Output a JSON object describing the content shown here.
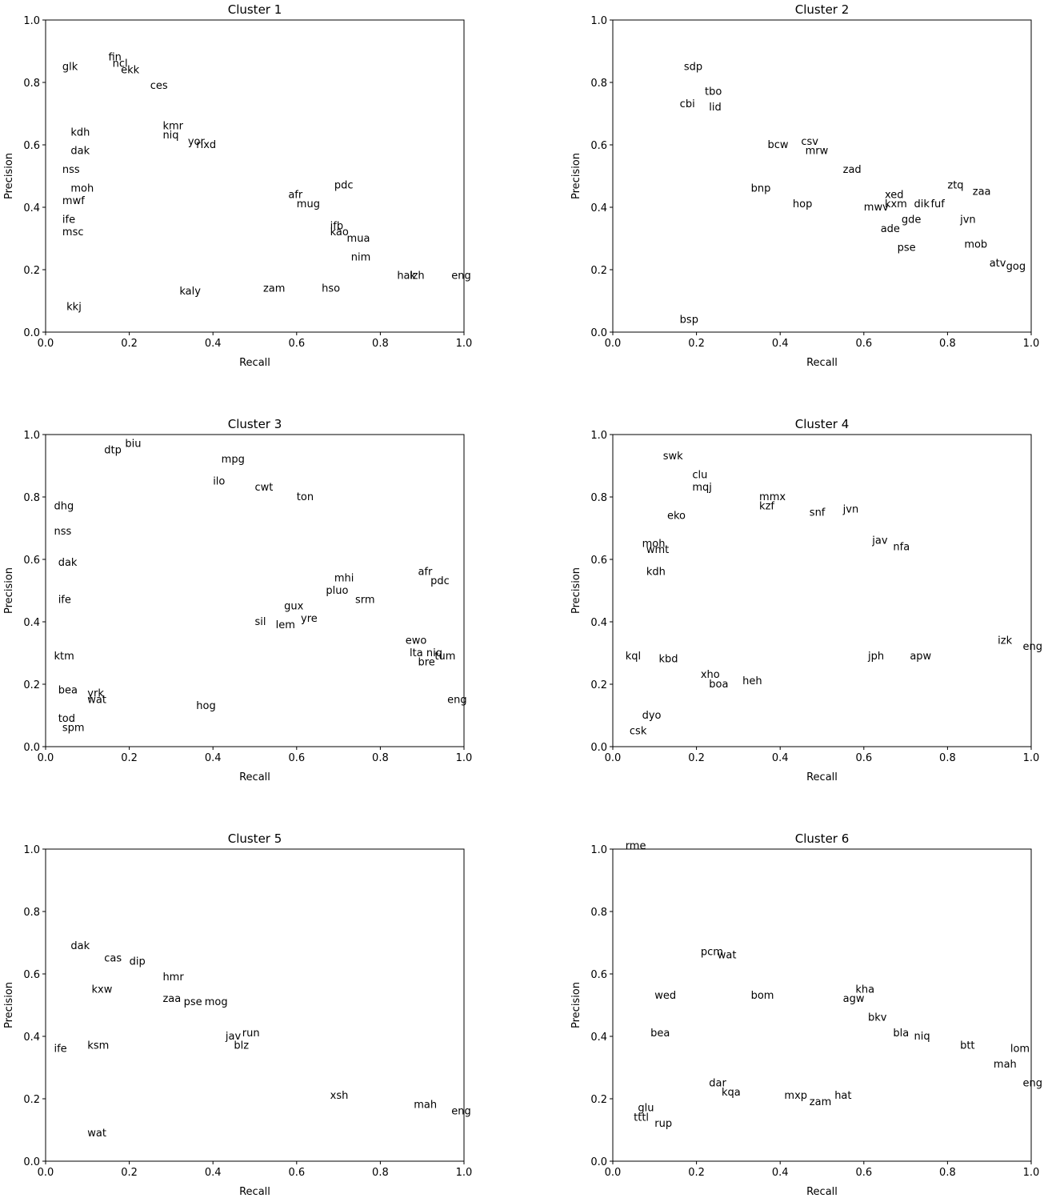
{
  "chart_data": [
    {
      "type": "scatter",
      "title": "Cluster 1",
      "xlabel": "Recall",
      "ylabel": "Precision",
      "color": "#000000",
      "xlim": [
        0,
        1
      ],
      "ylim": [
        0,
        1
      ],
      "xticks": [
        {
          "value": 0,
          "label": "0.0"
        },
        0.2,
        0.4,
        0.6,
        0.8,
        {
          "value": 1,
          "label": "1.0"
        }
      ],
      "yticks": [
        {
          "value": 0,
          "label": "0.0"
        },
        0.2,
        0.4,
        0.6,
        0.8,
        {
          "value": 1,
          "label": "1.0"
        }
      ],
      "labels": [
        "eng",
        "pdc",
        "mua",
        "kao",
        "nim",
        "fin",
        "ncl",
        "ekk",
        "ces",
        "glk",
        "kdh",
        "kmr",
        "niq",
        "yor",
        "rixd",
        "dak",
        "nss",
        "moh",
        "mwf",
        "ife",
        "msc",
        "hak",
        "lzh",
        "afr",
        "mug",
        "ifb",
        "kkj",
        "zam",
        "hso",
        "kaly"
      ],
      "x": [
        0.97,
        0.69,
        0.72,
        0.68,
        0.73,
        0.15,
        0.16,
        0.18,
        0.25,
        0.04,
        0.06,
        0.28,
        0.28,
        0.34,
        0.36,
        0.06,
        0.04,
        0.06,
        0.04,
        0.04,
        0.04,
        0.84,
        0.87,
        0.58,
        0.6,
        0.68,
        0.05,
        0.52,
        0.66,
        0.32
      ],
      "values": [
        0.17,
        0.46,
        0.29,
        0.31,
        0.23,
        0.87,
        0.85,
        0.83,
        0.78,
        0.84,
        0.63,
        0.65,
        0.62,
        0.6,
        0.59,
        0.57,
        0.51,
        0.45,
        0.41,
        0.35,
        0.31,
        0.17,
        0.17,
        0.43,
        0.4,
        0.33,
        0.07,
        0.13,
        0.13,
        0.12
      ]
    },
    {
      "type": "scatter",
      "title": "Cluster 2",
      "xlabel": "Recall",
      "ylabel": "Precision",
      "color": "#000000",
      "xlim": [
        0,
        1
      ],
      "ylim": [
        0,
        1
      ],
      "xticks": [
        {
          "value": 0,
          "label": "0.0"
        },
        0.2,
        0.4,
        0.6,
        0.8,
        {
          "value": 1,
          "label": "1.0"
        }
      ],
      "yticks": [
        {
          "value": 0,
          "label": "0.0"
        },
        0.2,
        0.4,
        0.6,
        0.8,
        {
          "value": 1,
          "label": "1.0"
        }
      ],
      "labels": [
        "zaa",
        "ztq",
        "xed",
        "kxm",
        "dik",
        "fuf",
        "jvn",
        "gde",
        "mob",
        "atv",
        "gog",
        "csv",
        "mrw",
        "bcw",
        "sdp",
        "tbo",
        "cbi",
        "lid",
        "zad",
        "pse",
        "mwv",
        "ade",
        "hop",
        "bnp",
        "bsp"
      ],
      "x": [
        0.86,
        0.8,
        0.65,
        0.65,
        0.72,
        0.76,
        0.83,
        0.69,
        0.84,
        0.9,
        0.94,
        0.45,
        0.46,
        0.37,
        0.17,
        0.22,
        0.16,
        0.23,
        0.55,
        0.68,
        0.6,
        0.64,
        0.43,
        0.33,
        0.16
      ],
      "values": [
        0.44,
        0.46,
        0.43,
        0.4,
        0.4,
        0.4,
        0.35,
        0.35,
        0.27,
        0.21,
        0.2,
        0.6,
        0.57,
        0.59,
        0.84,
        0.76,
        0.72,
        0.71,
        0.51,
        0.26,
        0.39,
        0.32,
        0.4,
        0.45,
        0.03
      ]
    },
    {
      "type": "scatter",
      "title": "Cluster 3",
      "xlabel": "Recall",
      "ylabel": "Precision",
      "color": "#000000",
      "xlim": [
        0,
        1
      ],
      "ylim": [
        0,
        1
      ],
      "xticks": [
        {
          "value": 0,
          "label": "0.0"
        },
        0.2,
        0.4,
        0.6,
        0.8,
        {
          "value": 1,
          "label": "1.0"
        }
      ],
      "yticks": [
        {
          "value": 0,
          "label": "0.0"
        },
        0.2,
        0.4,
        0.6,
        0.8,
        {
          "value": 1,
          "label": "1.0"
        }
      ],
      "labels": [
        "eng",
        "tum",
        "niq",
        "ewo",
        "lta",
        "bre",
        "afr",
        "pdc",
        "mpg",
        "biu",
        "dtp",
        "ilo",
        "cwt",
        "ton",
        "dhg",
        "nss",
        "dak",
        "ife",
        "srm",
        "mhi",
        "ktm",
        "bea",
        "yrk",
        "wat",
        "spm",
        "tod",
        "lem",
        "sil",
        "gux",
        "yre",
        "pluo",
        "hog"
      ],
      "x": [
        0.96,
        0.93,
        0.91,
        0.86,
        0.87,
        0.89,
        0.89,
        0.92,
        0.42,
        0.19,
        0.14,
        0.4,
        0.5,
        0.6,
        0.02,
        0.02,
        0.03,
        0.03,
        0.74,
        0.69,
        0.02,
        0.03,
        0.1,
        0.1,
        0.04,
        0.03,
        0.55,
        0.5,
        0.57,
        0.61,
        0.67,
        0.36
      ],
      "values": [
        0.14,
        0.28,
        0.29,
        0.33,
        0.29,
        0.26,
        0.55,
        0.52,
        0.91,
        0.96,
        0.94,
        0.84,
        0.82,
        0.79,
        0.76,
        0.68,
        0.58,
        0.46,
        0.46,
        0.53,
        0.28,
        0.17,
        0.16,
        0.14,
        0.05,
        0.08,
        0.38,
        0.39,
        0.44,
        0.4,
        0.49,
        0.12
      ]
    },
    {
      "type": "scatter",
      "title": "Cluster 4",
      "xlabel": "Recall",
      "ylabel": "Precision",
      "color": "#000000",
      "xlim": [
        0,
        1
      ],
      "ylim": [
        0,
        1
      ],
      "xticks": [
        {
          "value": 0,
          "label": "0.0"
        },
        0.2,
        0.4,
        0.6,
        0.8,
        {
          "value": 1,
          "label": "1.0"
        }
      ],
      "yticks": [
        {
          "value": 0,
          "label": "0.0"
        },
        0.2,
        0.4,
        0.6,
        0.8,
        {
          "value": 1,
          "label": "1.0"
        }
      ],
      "labels": [
        "swk",
        "clu",
        "mqj",
        "mmx",
        "kzf",
        "jvn",
        "snf",
        "moh",
        "wmt",
        "kdh",
        "eko",
        "dyo",
        "csk",
        "eng",
        "izk",
        "apw",
        "heh",
        "boa",
        "xho",
        "kbd",
        "kql",
        "nfa",
        "jav",
        "jph"
      ],
      "x": [
        0.12,
        0.19,
        0.19,
        0.35,
        0.35,
        0.55,
        0.47,
        0.07,
        0.08,
        0.08,
        0.13,
        0.07,
        0.04,
        0.98,
        0.92,
        0.71,
        0.31,
        0.23,
        0.21,
        0.11,
        0.03,
        0.67,
        0.62,
        0.61
      ],
      "values": [
        0.92,
        0.86,
        0.82,
        0.79,
        0.76,
        0.75,
        0.74,
        0.64,
        0.62,
        0.55,
        0.73,
        0.09,
        0.04,
        0.31,
        0.33,
        0.28,
        0.2,
        0.19,
        0.22,
        0.27,
        0.28,
        0.63,
        0.65,
        0.28
      ]
    },
    {
      "type": "scatter",
      "title": "Cluster 5",
      "xlabel": "Recall",
      "ylabel": "Precision",
      "color": "#000000",
      "xlim": [
        0,
        1
      ],
      "ylim": [
        0,
        1
      ],
      "xticks": [
        {
          "value": 0,
          "label": "0.0"
        },
        0.2,
        0.4,
        0.6,
        0.8,
        {
          "value": 1,
          "label": "1.0"
        }
      ],
      "yticks": [
        {
          "value": 0,
          "label": "0.0"
        },
        0.2,
        0.4,
        0.6,
        0.8,
        {
          "value": 1,
          "label": "1.0"
        }
      ],
      "labels": [
        "eng",
        "mah",
        "dak",
        "cas",
        "dip",
        "hmr",
        "mog",
        "pse",
        "run",
        "jav",
        "blz",
        "ife",
        "xsh",
        "wat",
        "zaa",
        "ksm",
        "kxw"
      ],
      "x": [
        0.97,
        0.88,
        0.06,
        0.14,
        0.2,
        0.28,
        0.38,
        0.33,
        0.47,
        0.43,
        0.45,
        0.02,
        0.68,
        0.1,
        0.28,
        0.1,
        0.11
      ],
      "values": [
        0.15,
        0.17,
        0.68,
        0.64,
        0.63,
        0.58,
        0.5,
        0.5,
        0.4,
        0.39,
        0.36,
        0.35,
        0.2,
        0.08,
        0.51,
        0.36,
        0.54
      ]
    },
    {
      "type": "scatter",
      "title": "Cluster 6",
      "xlabel": "Recall",
      "ylabel": "Precision",
      "color": "#000000",
      "xlim": [
        0,
        1
      ],
      "ylim": [
        0,
        1
      ],
      "xticks": [
        {
          "value": 0,
          "label": "0.0"
        },
        0.2,
        0.4,
        0.6,
        0.8,
        {
          "value": 1,
          "label": "1.0"
        }
      ],
      "yticks": [
        {
          "value": 0,
          "label": "0.0"
        },
        0.2,
        0.4,
        0.6,
        0.8,
        {
          "value": 1,
          "label": "1.0"
        }
      ],
      "labels": [
        "rme",
        "eng",
        "lom",
        "mah",
        "btt",
        "niq",
        "bla",
        "kha",
        "agw",
        "bkv",
        "bom",
        "pcm",
        "wat",
        "wed",
        "tttl",
        "rup",
        "glu",
        "dar",
        "kqa",
        "zam",
        "hat",
        "mxp",
        "bea"
      ],
      "x": [
        0.03,
        0.98,
        0.95,
        0.91,
        0.83,
        0.72,
        0.67,
        0.58,
        0.55,
        0.61,
        0.33,
        0.21,
        0.25,
        0.1,
        0.05,
        0.1,
        0.06,
        0.23,
        0.26,
        0.47,
        0.53,
        0.41,
        0.09
      ],
      "values": [
        1.0,
        0.24,
        0.35,
        0.3,
        0.36,
        0.39,
        0.4,
        0.54,
        0.51,
        0.45,
        0.52,
        0.66,
        0.65,
        0.52,
        0.13,
        0.11,
        0.16,
        0.24,
        0.21,
        0.18,
        0.2,
        0.2,
        0.4
      ]
    }
  ]
}
